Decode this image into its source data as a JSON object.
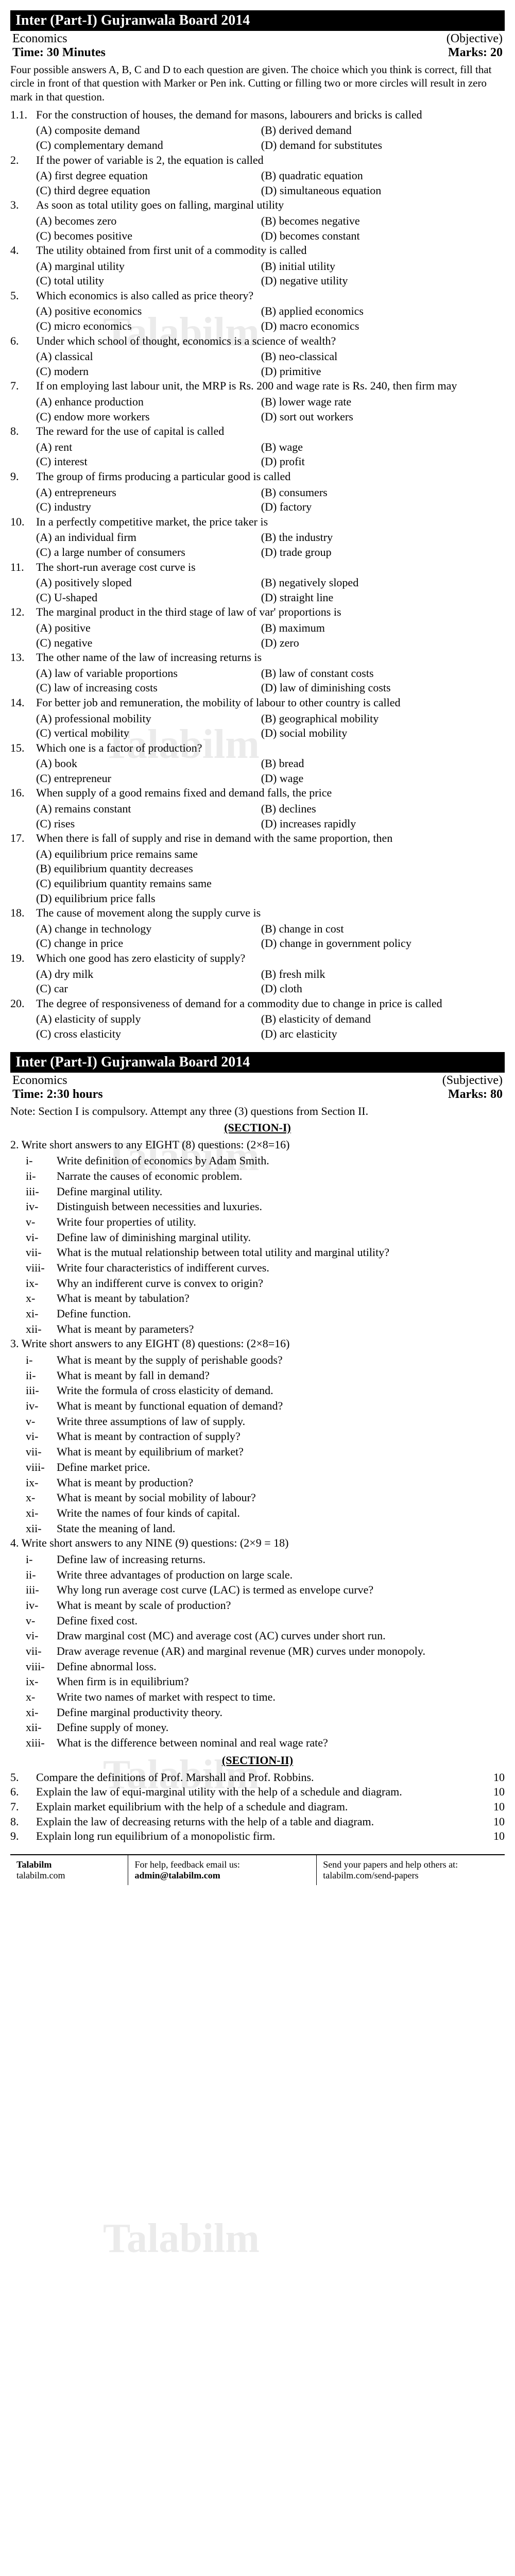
{
  "paper1": {
    "header": "Inter (Part-I) Gujranwala Board 2014",
    "subject": "Economics",
    "type": "(Objective)",
    "time": "Time: 30 Minutes",
    "marks": "Marks: 20",
    "instructions": "Four possible answers A, B, C and D to each question are given. The choice which you think is correct, fill that circle in front of that question with Marker or Pen ink. Cutting or filling two or more circles will result in zero mark in that question."
  },
  "mcq": [
    {
      "n": "1.1.",
      "q": "For the construction of houses, the demand for masons, labourers and bricks is called",
      "a": "(A) composite demand",
      "b": "(B) derived demand",
      "c": "(C) complementary demand",
      "d": "(D) demand for substitutes"
    },
    {
      "n": "2.",
      "q": "If the power of variable is 2, the equation is called",
      "a": "(A) first degree equation",
      "b": "(B) quadratic equation",
      "c": "(C) third degree equation",
      "d": "(D) simultaneous equation"
    },
    {
      "n": "3.",
      "q": "As soon as total utility goes on falling, marginal utility",
      "a": "(A) becomes zero",
      "b": "(B) becomes negative",
      "c": "(C) becomes positive",
      "d": "(D) becomes constant"
    },
    {
      "n": "4.",
      "q": "The utility obtained from first unit of a commodity is called",
      "a": "(A) marginal utility",
      "b": "(B) initial utility",
      "c": "(C) total utility",
      "d": "(D) negative utility"
    },
    {
      "n": "5.",
      "q": "Which economics is also called as price theory?",
      "a": "(A) positive economics",
      "b": "(B) applied economics",
      "c": "(C) micro economics",
      "d": "(D) macro economics"
    },
    {
      "n": "6.",
      "q": "Under which school of thought, economics is a science of wealth?",
      "a": "(A) classical",
      "b": "(B) neo-classical",
      "c": "(C) modern",
      "d": "(D) primitive"
    },
    {
      "n": "7.",
      "q": "If on employing last labour unit, the MRP is Rs. 200 and wage rate is Rs. 240, then firm may",
      "a": "(A) enhance production",
      "b": "(B) lower wage rate",
      "c": "(C) endow more workers",
      "d": "(D) sort out workers"
    },
    {
      "n": "8.",
      "q": "The reward for the use of capital is called",
      "a": "(A) rent",
      "b": "(B) wage",
      "c": "(C) interest",
      "d": "(D) profit"
    },
    {
      "n": "9.",
      "q": "The group of firms producing a particular good is called",
      "a": "(A) entrepreneurs",
      "b": "(B) consumers",
      "c": "(C) industry",
      "d": "(D) factory"
    },
    {
      "n": "10.",
      "q": "In a perfectly competitive market, the price taker is",
      "a": "(A) an individual firm",
      "b": "(B) the industry",
      "c": "(C) a large number of consumers",
      "d": "(D) trade group"
    },
    {
      "n": "11.",
      "q": "The short-run average cost curve is",
      "a": "(A) positively sloped",
      "b": "(B) negatively sloped",
      "c": "(C) U-shaped",
      "d": "(D) straight line"
    },
    {
      "n": "12.",
      "q": "The marginal product in the third stage of law of var' proportions is",
      "a": "(A) positive",
      "b": "(B) maximum",
      "c": "(C) negative",
      "d": "(D) zero"
    },
    {
      "n": "13.",
      "q": "The other name of the law of increasing returns is",
      "a": "(A) law of variable proportions",
      "b": "(B) law of constant costs",
      "c": "(C) law of increasing costs",
      "d": "(D) law of diminishing costs"
    },
    {
      "n": "14.",
      "q": "For better job and remuneration, the mobility of labour to other country is called",
      "a": "(A) professional mobility",
      "b": "(B) geographical mobility",
      "c": "(C) vertical mobility",
      "d": "(D) social mobility"
    },
    {
      "n": "15.",
      "q": "Which one is a factor of production?",
      "a": "(A) book",
      "b": "(B) bread",
      "c": "(C) entrepreneur",
      "d": "(D) wage"
    },
    {
      "n": "16.",
      "q": "When supply of a good remains fixed and demand falls, the price",
      "a": "(A) remains constant",
      "b": "(B) declines",
      "c": "(C) rises",
      "d": "(D) increases rapidly"
    },
    {
      "n": "17.",
      "q": "When there is fall of supply and rise in demand with the same proportion, then",
      "a": "(A) equilibrium price remains same",
      "b": "",
      "c": "(B) equilibrium quantity decreases",
      "d": "",
      "e": "(C) equilibrium quantity remains same",
      "f": "(D) equilibrium price falls",
      "stacked": true
    },
    {
      "n": "18.",
      "q": "The cause of movement along the supply curve is",
      "a": "(A) change in technology",
      "b": "(B) change in cost",
      "c": "(C) change in price",
      "d": "(D) change in government policy"
    },
    {
      "n": "19.",
      "q": "Which one good has zero elasticity of supply?",
      "a": "(A) dry milk",
      "b": "(B) fresh milk",
      "c": "(C) car",
      "d": "(D) cloth"
    },
    {
      "n": "20.",
      "q": "The degree of responsiveness of demand for a commodity due to change in price is called",
      "a": "(A) elasticity of supply",
      "b": "(B) elasticity of demand",
      "c": "(C) cross elasticity",
      "d": "(D) arc elasticity"
    }
  ],
  "paper2": {
    "header": "Inter (Part-I) Gujranwala Board 2014",
    "subject": "Economics",
    "type": "(Subjective)",
    "time": "Time: 2:30 hours",
    "marks": "Marks: 80",
    "note": "Note: Section I is compulsory. Attempt any three (3) questions from Section II.",
    "section1": "(SECTION-I)"
  },
  "q2": {
    "head": "2.   Write short answers to any EIGHT (8) questions:   (2×8=16)",
    "items": [
      {
        "n": "i-",
        "t": "Write definition of economics by Adam Smith."
      },
      {
        "n": "ii-",
        "t": "Narrate the causes of economic problem."
      },
      {
        "n": "iii-",
        "t": "Define marginal utility."
      },
      {
        "n": "iv-",
        "t": "Distinguish between necessities and luxuries."
      },
      {
        "n": "v-",
        "t": "Write four properties of utility."
      },
      {
        "n": "vi-",
        "t": "Define law of diminishing marginal utility."
      },
      {
        "n": "vii-",
        "t": "What is the mutual relationship between total utility and marginal utility?"
      },
      {
        "n": "viii-",
        "t": "Write four characteristics of indifferent curves."
      },
      {
        "n": "ix-",
        "t": "Why an indifferent curve is convex to origin?"
      },
      {
        "n": "x-",
        "t": "What is meant by tabulation?"
      },
      {
        "n": "xi-",
        "t": "Define function."
      },
      {
        "n": "xii-",
        "t": "What is meant by parameters?"
      }
    ]
  },
  "q3": {
    "head": "3.   Write short answers to any EIGHT (8) questions:   (2×8=16)",
    "items": [
      {
        "n": "i-",
        "t": "What is meant by the supply of perishable goods?"
      },
      {
        "n": "ii-",
        "t": "What is meant by fall in demand?"
      },
      {
        "n": "iii-",
        "t": "Write the formula of cross elasticity of demand."
      },
      {
        "n": "iv-",
        "t": "What is meant by functional equation of demand?"
      },
      {
        "n": "v-",
        "t": "Write three assumptions of law of supply."
      },
      {
        "n": "vi-",
        "t": "What is meant by contraction of supply?"
      },
      {
        "n": "vii-",
        "t": "What is meant by equilibrium of market?"
      },
      {
        "n": "viii-",
        "t": "Define market price."
      },
      {
        "n": "ix-",
        "t": "What is meant by production?"
      },
      {
        "n": "x-",
        "t": "What is meant by social mobility of labour?"
      },
      {
        "n": "xi-",
        "t": "Write the names of four kinds of capital."
      },
      {
        "n": "xii-",
        "t": "State the meaning of land."
      }
    ]
  },
  "q4": {
    "head": "4.   Write short answers to any NINE (9) questions:   (2×9 = 18)",
    "items": [
      {
        "n": "i-",
        "t": "Define law of increasing returns."
      },
      {
        "n": "ii-",
        "t": "Write three advantages of production on large scale."
      },
      {
        "n": "iii-",
        "t": "Why long run average cost curve (LAC) is termed as envelope curve?"
      },
      {
        "n": "iv-",
        "t": "What is meant by scale of production?"
      },
      {
        "n": "v-",
        "t": "Define fixed cost."
      },
      {
        "n": "vi-",
        "t": "Draw marginal cost (MC) and average cost (AC) curves under short run."
      },
      {
        "n": "vii-",
        "t": "Draw average revenue (AR) and marginal revenue (MR) curves under monopoly."
      },
      {
        "n": "viii-",
        "t": "Define abnormal loss."
      },
      {
        "n": "ix-",
        "t": "When firm is in equilibrium?"
      },
      {
        "n": "x-",
        "t": "Write two names of market with respect to time."
      },
      {
        "n": "xi-",
        "t": "Define marginal productivity theory."
      },
      {
        "n": "xii-",
        "t": "Define supply of money."
      },
      {
        "n": "xiii-",
        "t": "What is the difference between nominal and real wage rate?"
      }
    ]
  },
  "section2": {
    "head": "(SECTION-II)",
    "items": [
      {
        "n": "5.",
        "t": "Compare the definitions of Prof. Marshall and Prof. Robbins.",
        "m": "10"
      },
      {
        "n": "6.",
        "t": "Explain the law of equi-marginal utility with the help of a schedule and diagram.",
        "m": "10"
      },
      {
        "n": "7.",
        "t": "Explain market equilibrium with the help of a schedule and diagram.",
        "m": "10"
      },
      {
        "n": "8.",
        "t": "Explain the law of decreasing returns with the help of a table and diagram.",
        "m": "10"
      },
      {
        "n": "9.",
        "t": "Explain long run equilibrium of a monopolistic firm.",
        "m": "10"
      }
    ]
  },
  "footer": {
    "brand": "Talabilm",
    "site": "talabilm.com",
    "help1": "For help, feedback email us:",
    "help2": "admin@talabilm.com",
    "send1": "Send your papers and help others at:",
    "send2": "talabilm.com/send-papers"
  }
}
